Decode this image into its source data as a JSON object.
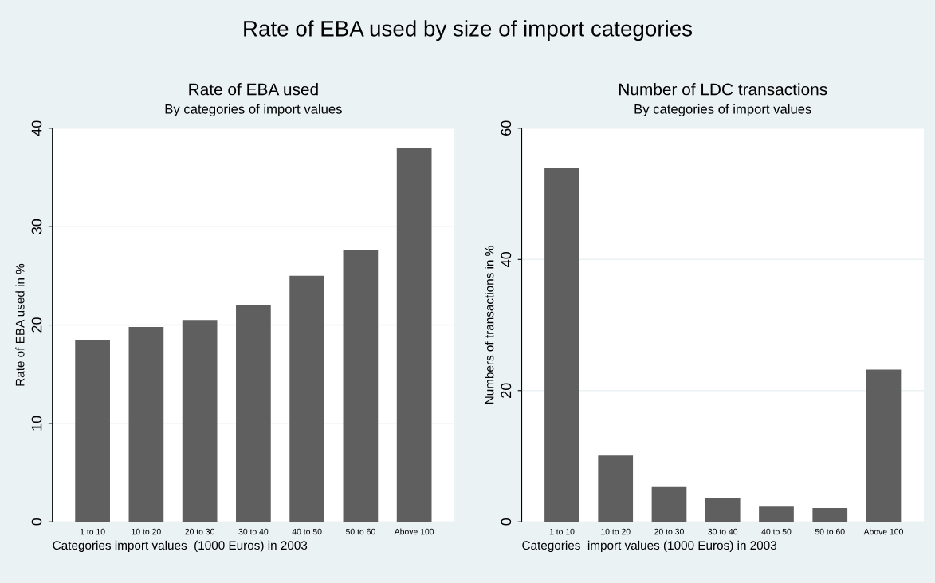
{
  "chart_data": [
    {
      "type": "bar",
      "title": "Rate of EBA used",
      "subtitle": "By categories of import values",
      "annotations": [
        "Rate of EBA used by size of import categories"
      ],
      "categories": [
        "1 to 10",
        "10 to 20",
        "20 to 30",
        "30 to 40",
        "40 to 50",
        "50 to 60",
        "Above 100"
      ],
      "values": [
        18.5,
        19.8,
        20.5,
        22.0,
        25.0,
        27.6,
        38.0
      ],
      "color": "#5f5f5f",
      "xlabel": "Categories import values  (1000 Euros) in 2003",
      "ylabel": "Rate of EBA used in %",
      "ylim": [
        0,
        40
      ],
      "yticks": [
        0,
        10,
        20,
        30,
        40
      ],
      "grid": "y"
    },
    {
      "type": "bar",
      "title": "Number of LDC transactions",
      "subtitle": "By categories of import values",
      "categories": [
        "1 to 10",
        "10 to 20",
        "20 to 30",
        "30 to 40",
        "40 to 50",
        "50 to 60",
        "Above 100"
      ],
      "values": [
        53.9,
        10.1,
        5.3,
        3.6,
        2.3,
        2.1,
        23.2
      ],
      "color": "#5f5f5f",
      "xlabel": "Categories  import values (1000 Euros) in 2003",
      "ylabel": "Numbers of transactions in %",
      "ylim": [
        0,
        60
      ],
      "yticks": [
        0,
        20,
        40,
        60
      ],
      "grid": "y"
    }
  ]
}
